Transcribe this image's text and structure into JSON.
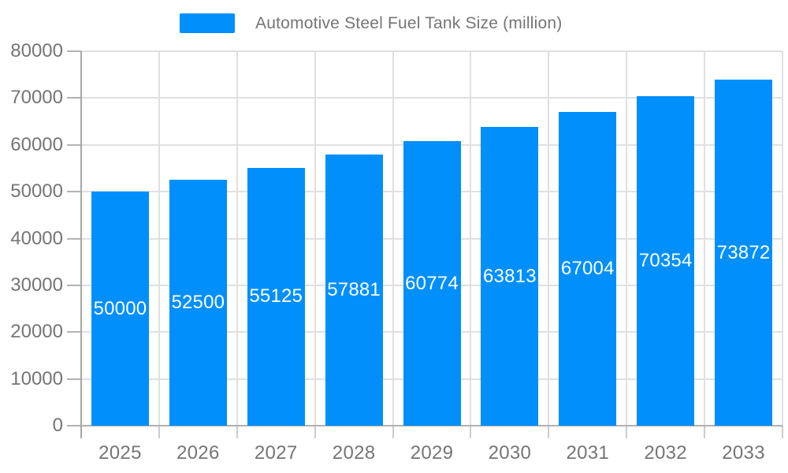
{
  "legend": {
    "label": "Automotive Steel Fuel Tank Size (million)",
    "swatch_color": "#008FFB"
  },
  "chart_data": {
    "type": "bar",
    "title": "Automotive Steel Fuel Tank Size (million)",
    "categories": [
      "2025",
      "2026",
      "2027",
      "2028",
      "2029",
      "2030",
      "2031",
      "2032",
      "2033"
    ],
    "values": [
      50000,
      52500,
      55125,
      57881,
      60774,
      63813,
      67004,
      70354,
      73872
    ],
    "xlabel": "",
    "ylabel": "",
    "ylim": [
      0,
      80000
    ],
    "ytick_step": 10000,
    "ytick_labels": [
      "0",
      "10000",
      "20000",
      "30000",
      "40000",
      "50000",
      "60000",
      "70000",
      "80000"
    ],
    "grid": true,
    "grid_vertical": true,
    "legend_position": "top",
    "data_labels": "inside-center",
    "colors": {
      "bar": "#008FFB",
      "data_label_text": "#FFFFFF",
      "axis_text": "#757575",
      "grid": "#E0E0E0",
      "y_axis_line": "#A6A6A6",
      "x_axis_line": "#B1B1B1"
    }
  }
}
